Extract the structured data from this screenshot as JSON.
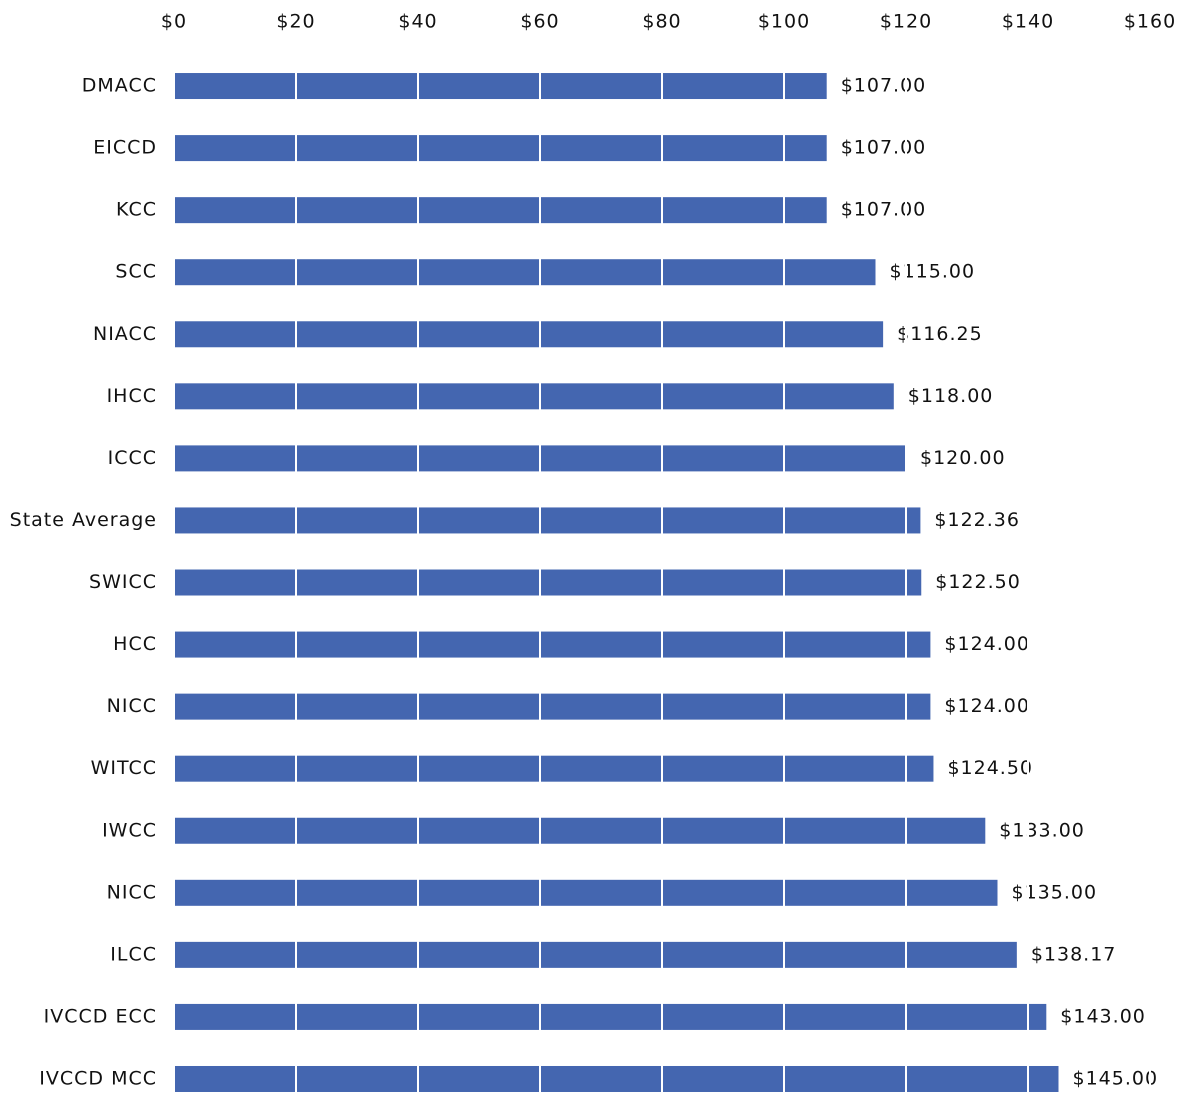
{
  "chart_data": {
    "type": "bar",
    "orientation": "horizontal",
    "categories": [
      "DMACC",
      "EICCD",
      "KCC",
      "SCC",
      "NIACC",
      "IHCC",
      "ICCC",
      "State Average",
      "SWICC",
      "HCC",
      "NICC",
      "WITCC",
      "IWCC",
      "NICC",
      "ILCC",
      "IVCCD ECC",
      "IVCCD MCC"
    ],
    "values": [
      107,
      107,
      107,
      115,
      116.25,
      118,
      120,
      122.36,
      122.5,
      124,
      124,
      124.5,
      133,
      135,
      138.17,
      143,
      145
    ],
    "value_labels": [
      "$107.00",
      "$107.00",
      "$107.00",
      "$115.00",
      "$116.25",
      "$118.00",
      "$120.00",
      "$122.36",
      "$122.50",
      "$124.00",
      "$124.00",
      "$124.50",
      "$133.00",
      "$135.00",
      "$138.17",
      "$143.00",
      "$145.00"
    ],
    "color": "#4466b0",
    "xlim": [
      0,
      160
    ],
    "xticks": [
      {
        "value": 0,
        "label": "$0"
      },
      {
        "value": 20,
        "label": "$20"
      },
      {
        "value": 40,
        "label": "$40"
      },
      {
        "value": 60,
        "label": "$60"
      },
      {
        "value": 80,
        "label": "$80"
      },
      {
        "value": 100,
        "label": "$100"
      },
      {
        "value": 120,
        "label": "$120"
      },
      {
        "value": 140,
        "label": "$140"
      },
      {
        "value": 160,
        "label": "$160"
      }
    ],
    "grid": true
  }
}
